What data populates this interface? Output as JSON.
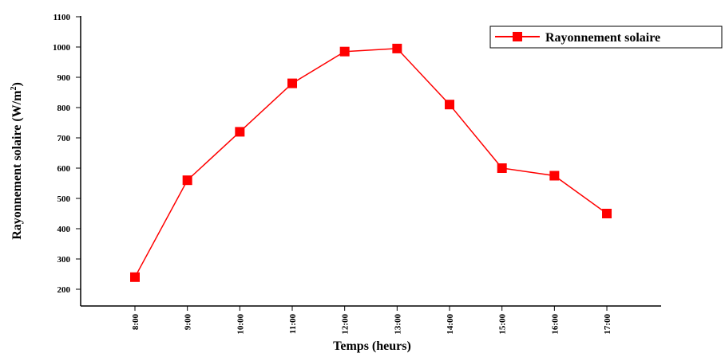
{
  "chart_data": {
    "type": "line",
    "x": [
      "8:00",
      "9:00",
      "10:00",
      "11:00",
      "12:00",
      "13:00",
      "14:00",
      "15:00",
      "16:00",
      "17:00"
    ],
    "series": [
      {
        "name": "Rayonnement solaire",
        "values": [
          240,
          560,
          720,
          880,
          985,
          995,
          810,
          600,
          575,
          450
        ],
        "color": "#ff0000",
        "marker": "square"
      }
    ],
    "xlabel": "Temps (heurs)",
    "ylabel": "Rayonnement solaire (W/m²)",
    "ylim": [
      150,
      1100
    ],
    "yticks": [
      200,
      300,
      400,
      500,
      600,
      700,
      800,
      900,
      1000,
      1100
    ],
    "grid": false,
    "legend_position": "top-right"
  }
}
